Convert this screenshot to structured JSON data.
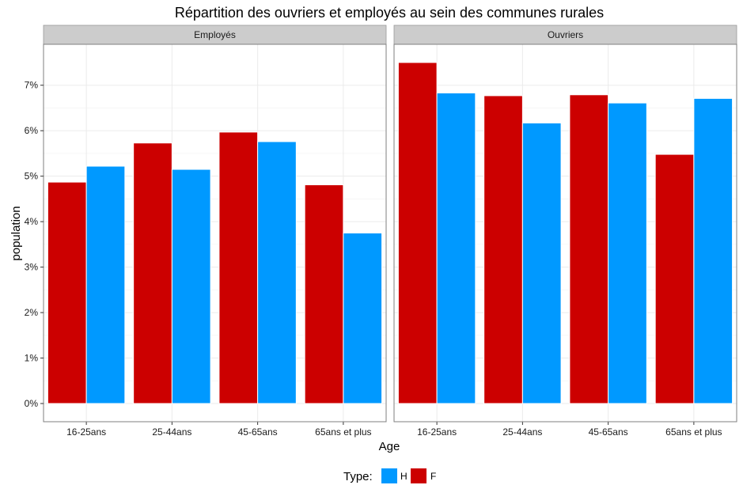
{
  "chart_data": {
    "type": "bar",
    "title": "Répartition des ouvriers et employés au sein des communes rurales",
    "xlabel": "Age",
    "ylabel": "population",
    "categories": [
      "16-25ans",
      "25-44ans",
      "45-65ans",
      "65ans et plus"
    ],
    "ylim": [
      -0.004,
      0.079
    ],
    "yticks": [
      0,
      0.01,
      0.02,
      0.03,
      0.04,
      0.05,
      0.06,
      0.07
    ],
    "ytick_labels": [
      "0%",
      "1%",
      "2%",
      "3%",
      "4%",
      "5%",
      "6%",
      "7%"
    ],
    "grid": true,
    "legend": {
      "title": "Type:",
      "position": "bottom",
      "entries": [
        {
          "label": "H",
          "color": "#0099FF"
        },
        {
          "label": "F",
          "color": "#CC0000"
        }
      ]
    },
    "series_colors": {
      "F": "#CC0000",
      "H": "#0099FF"
    },
    "panels": [
      {
        "label": "Employés",
        "F": [
          0.0487,
          0.0573,
          0.0597,
          0.0481
        ],
        "H": [
          0.0522,
          0.0515,
          0.0576,
          0.0375
        ]
      },
      {
        "label": "Ouvriers",
        "F": [
          0.075,
          0.0677,
          0.0679,
          0.0548
        ],
        "H": [
          0.0683,
          0.0617,
          0.0661,
          0.0671
        ]
      }
    ]
  }
}
